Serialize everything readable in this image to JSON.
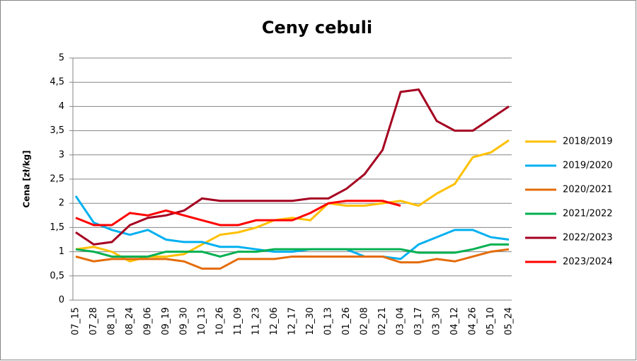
{
  "chart_data": {
    "type": "line",
    "title": "Ceny cebuli",
    "y_label": "Cena [zł/kg]",
    "categories": [
      "07_15",
      "07_28",
      "08_10",
      "08_24",
      "09_06",
      "09_19",
      "09_30",
      "10_13",
      "10_26",
      "11_09",
      "11_23",
      "12_06",
      "12_17",
      "12_30",
      "01_13",
      "01_26",
      "02_08",
      "02_21",
      "03_04",
      "03_17",
      "03_30",
      "04_12",
      "04_26",
      "05_10",
      "05_24"
    ],
    "ylim": [
      0,
      5
    ],
    "yticks": [
      0,
      {
        "value": 0.5,
        "label": "0,5"
      },
      1,
      {
        "value": 1.5,
        "label": "1,5"
      },
      2,
      {
        "value": 2.5,
        "label": "2,5"
      },
      3,
      {
        "value": 3.5,
        "label": "3,5"
      },
      4,
      {
        "value": 4.5,
        "label": "4,5"
      },
      5
    ],
    "grid": true,
    "legend": "right",
    "series": [
      {
        "name": "2018/2019",
        "color": "#ffc000",
        "values": [
          1.05,
          1.1,
          1.0,
          0.8,
          0.9,
          0.9,
          0.95,
          1.15,
          1.35,
          1.4,
          1.5,
          1.65,
          1.7,
          1.65,
          2.0,
          1.95,
          1.95,
          2.0,
          2.05,
          1.95,
          2.2,
          2.4,
          2.95,
          3.05,
          3.3
        ]
      },
      {
        "name": "2019/2020",
        "color": "#00b0f0",
        "values": [
          2.15,
          1.6,
          1.45,
          1.35,
          1.45,
          1.25,
          1.2,
          1.2,
          1.1,
          1.1,
          1.05,
          1.0,
          1.0,
          1.05,
          1.05,
          1.05,
          0.9,
          0.9,
          0.85,
          1.15,
          1.3,
          1.45,
          1.45,
          1.3,
          1.25
        ]
      },
      {
        "name": "2020/2021",
        "color": "#e46c0a",
        "values": [
          0.9,
          0.8,
          0.85,
          0.85,
          0.85,
          0.85,
          0.8,
          0.65,
          0.65,
          0.85,
          0.85,
          0.85,
          0.9,
          0.9,
          0.9,
          0.9,
          0.9,
          0.9,
          0.78,
          0.78,
          0.85,
          0.8,
          0.9,
          1.0,
          1.05
        ]
      },
      {
        "name": "2021/2022",
        "color": "#00b050",
        "values": [
          1.05,
          1.0,
          0.9,
          0.9,
          0.9,
          1.0,
          1.0,
          1.0,
          0.9,
          1.0,
          1.0,
          1.05,
          1.05,
          1.05,
          1.05,
          1.05,
          1.05,
          1.05,
          1.05,
          0.98,
          0.98,
          0.98,
          1.05,
          1.15,
          1.15
        ]
      },
      {
        "name": "2022/2023",
        "color": "#a50021",
        "values": [
          1.4,
          1.15,
          1.2,
          1.55,
          1.7,
          1.75,
          1.85,
          2.1,
          2.05,
          2.05,
          2.05,
          2.05,
          2.05,
          2.1,
          2.1,
          2.3,
          2.6,
          3.1,
          4.3,
          4.35,
          3.7,
          3.5,
          3.5,
          3.75,
          4.0
        ]
      },
      {
        "name": "2023/2024",
        "color": "#ff0000",
        "values": [
          1.7,
          1.55,
          1.55,
          1.8,
          1.75,
          1.85,
          1.75,
          1.65,
          1.55,
          1.55,
          1.65,
          1.65,
          1.65,
          1.8,
          2.0,
          2.05,
          2.05,
          2.05,
          1.95,
          null,
          null,
          null,
          null,
          null,
          null
        ]
      }
    ]
  }
}
